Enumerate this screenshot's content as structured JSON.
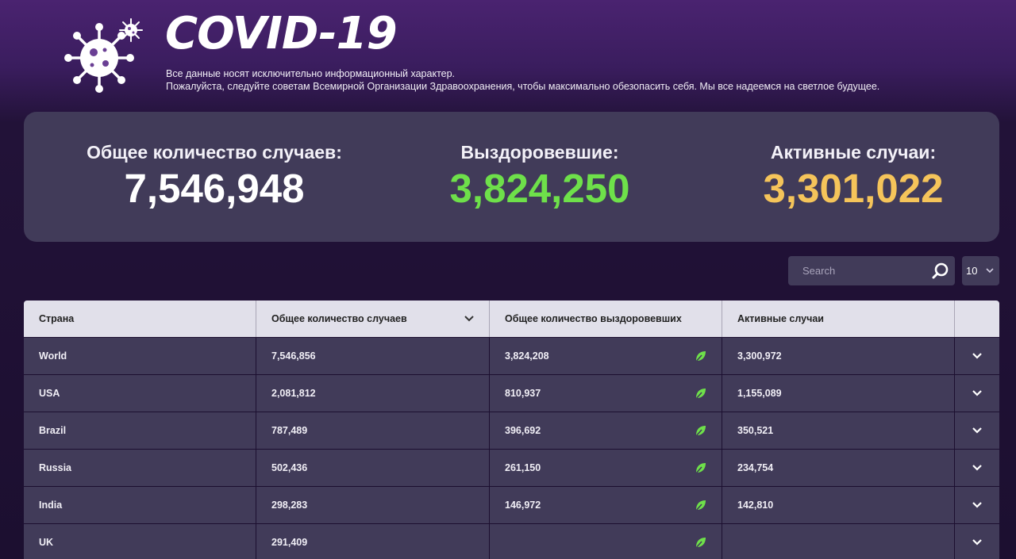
{
  "header": {
    "title": "COVID-19",
    "subtitle_line1": "Все данные носят исключительно информационный характер.",
    "subtitle_line2": "Пожалуйста, следуйте советам Всемирной Организации Здравоохранения, чтобы максимально обезопасить себя. Мы все надеемся на светлое будущее.",
    "logo_icon": "virus-icon"
  },
  "stats": {
    "total_label": "Общее количество случаев:",
    "total_value": "7,546,948",
    "recovered_label": "Выздоровевшие:",
    "recovered_value": "3,824,250",
    "active_label": "Активные случаи:",
    "active_value": "3,301,022"
  },
  "controls": {
    "search_placeholder": "Search",
    "per_page": "10"
  },
  "table": {
    "columns": [
      "Страна",
      "Общее количество случаев",
      "Общее количество выздоровевших",
      "Активные случаи"
    ],
    "rows": [
      {
        "country": "World",
        "total": "7,546,856",
        "recovered": "3,824,208",
        "active": "3,300,972"
      },
      {
        "country": "USA",
        "total": "2,081,812",
        "recovered": "810,937",
        "active": "1,155,089"
      },
      {
        "country": "Brazil",
        "total": "787,489",
        "recovered": "396,692",
        "active": "350,521"
      },
      {
        "country": "Russia",
        "total": "502,436",
        "recovered": "261,150",
        "active": "234,754"
      },
      {
        "country": "India",
        "total": "298,283",
        "recovered": "146,972",
        "active": "142,810"
      },
      {
        "country": "UK",
        "total": "291,409",
        "recovered": "",
        "active": ""
      }
    ]
  },
  "colors": {
    "recovered": "#6ee04a",
    "active": "#f5c45a",
    "leaf": "#6ee04a"
  }
}
